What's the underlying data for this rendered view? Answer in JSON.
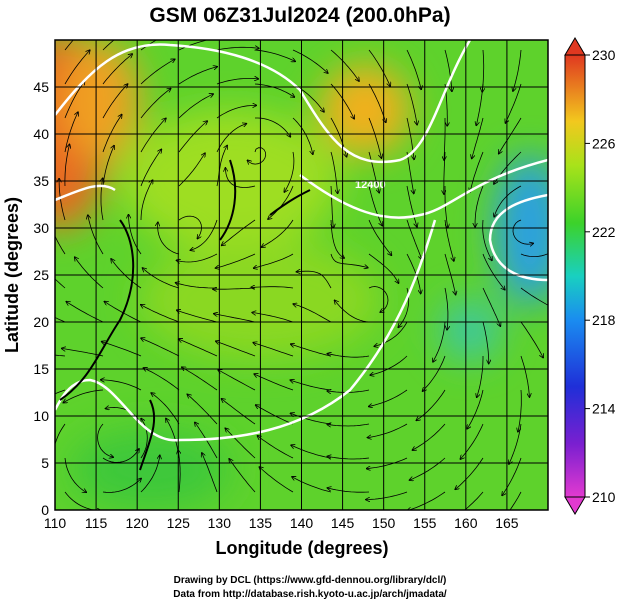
{
  "map": {
    "title": "GSM 06Z31Jul2024 (200.0hPa)",
    "xlabel": "Longitude (degrees)",
    "ylabel": "Latitude  (degrees)",
    "xlim": [
      110,
      170
    ],
    "ylim": [
      0,
      50
    ],
    "xticks": [
      110,
      115,
      120,
      125,
      130,
      135,
      140,
      145,
      150,
      155,
      160,
      165
    ],
    "yticks": [
      0,
      5,
      10,
      15,
      20,
      25,
      30,
      35,
      40,
      45
    ],
    "colorbar": {
      "lim": [
        210,
        230
      ],
      "ticks": [
        210,
        214,
        218,
        222,
        226,
        230
      ]
    },
    "contour_labels": [
      "12400"
    ],
    "footer": [
      "Drawing by DCL (https://www.gfd-dennou.org/library/dcl/)",
      "Data from http://database.rish.kyoto-u.ac.jp/arch/jmadata/"
    ]
  }
}
